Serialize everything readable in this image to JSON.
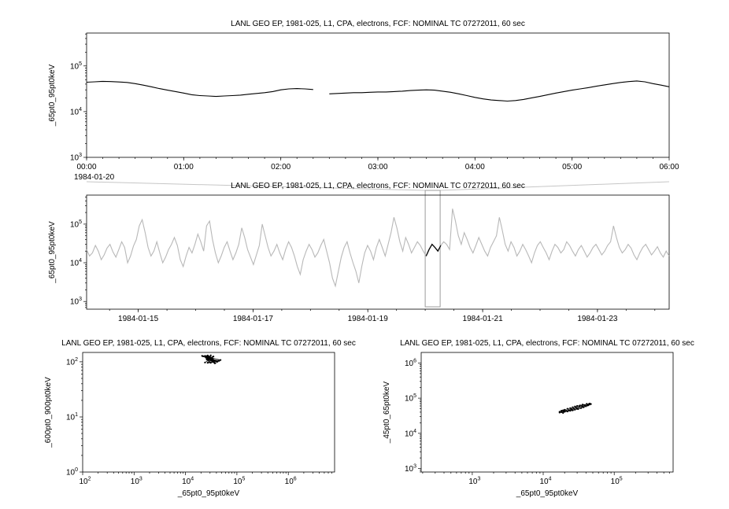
{
  "app": {
    "background": "#ffffff",
    "text_color": "#000000",
    "context_line_color": "#b8b8b8",
    "selection_box_color": "#9b9b9b"
  },
  "chart_data": [
    {
      "id": "top",
      "type": "line",
      "title": "LANL GEO EP, 1981-025, L1, CPA, electrons, FCF: NOMINAL TC 07272011, 60 sec",
      "ylabel": "_65pt0_95pt0keV",
      "xscale": "linear",
      "xlim": [
        0,
        6
      ],
      "x_minor_step": 0.16667,
      "x_tick_pos": [
        0,
        1,
        2,
        3,
        4,
        5,
        6
      ],
      "x_tick_labels": [
        "00:00",
        "01:00",
        "02:00",
        "03:00",
        "04:00",
        "05:00",
        "06:00"
      ],
      "x_context_label": "1984-01-20",
      "ylog_lim": [
        3,
        5.72
      ],
      "y_tick_exp": [
        3,
        4,
        5
      ],
      "line_color": "#000000",
      "x_start": 0,
      "x_step": 0.08333,
      "y": [
        44000,
        45000,
        46000,
        45500,
        44500,
        43500,
        41000,
        38000,
        35000,
        32000,
        29500,
        27500,
        25500,
        23500,
        22500,
        22000,
        21500,
        22000,
        22500,
        23000,
        24000,
        25000,
        26000,
        27500,
        30000,
        31500,
        32000,
        31500,
        30500,
        null,
        24500,
        25000,
        25500,
        26000,
        26000,
        26500,
        27000,
        27000,
        27500,
        28000,
        29000,
        29500,
        30000,
        29500,
        28000,
        26500,
        24500,
        22500,
        20500,
        19000,
        18000,
        17500,
        17000,
        17500,
        18500,
        20000,
        21500,
        23500,
        25500,
        27500,
        29500,
        31500,
        33500,
        36000,
        38500,
        41000,
        43500,
        45500,
        47000,
        45000,
        41000,
        38000,
        35000
      ]
    },
    {
      "id": "context",
      "type": "line",
      "title": "LANL GEO EP, 1981-025, L1, CPA, electrons, FCF: NOMINAL TC 07272011, 60 sec",
      "ylabel": "_65pt0_95pt0keV",
      "xscale": "linear",
      "xlim": [
        14.1,
        24.25
      ],
      "x_minor_step": 0.5,
      "x_tick_pos": [
        15,
        17,
        19,
        21,
        23
      ],
      "x_tick_labels": [
        "1984-01-15",
        "1984-01-17",
        "1984-01-19",
        "1984-01-21",
        "1984-01-23"
      ],
      "ylog_lim": [
        2.8,
        5.75
      ],
      "y_tick_exp": [
        3,
        4,
        5
      ],
      "line_color": "#b8b8b8",
      "highlight_color": "#000000",
      "selection": {
        "x0": 20.0,
        "x1": 20.26
      },
      "x_start": 14.1,
      "x_step": 0.051,
      "y": [
        22000,
        15000,
        18000,
        28000,
        20000,
        12000,
        16000,
        24000,
        30000,
        19000,
        14000,
        22000,
        35000,
        25000,
        10000,
        15000,
        27000,
        40000,
        90000,
        130000,
        60000,
        25000,
        15000,
        20000,
        35000,
        18000,
        10000,
        14000,
        22000,
        30000,
        45000,
        28000,
        12000,
        8000,
        15000,
        25000,
        18000,
        30000,
        55000,
        35000,
        20000,
        90000,
        120000,
        40000,
        18000,
        10000,
        15000,
        25000,
        35000,
        20000,
        12000,
        18000,
        30000,
        80000,
        45000,
        22000,
        14000,
        9000,
        16000,
        28000,
        100000,
        50000,
        25000,
        15000,
        20000,
        30000,
        18000,
        12000,
        22000,
        35000,
        25000,
        15000,
        8000,
        5000,
        12000,
        20000,
        30000,
        22000,
        14000,
        18000,
        28000,
        40000,
        20000,
        10000,
        4000,
        2500,
        6000,
        14000,
        25000,
        35000,
        18000,
        10000,
        6000,
        3000,
        8000,
        18000,
        28000,
        20000,
        12000,
        25000,
        40000,
        25000,
        15000,
        30000,
        60000,
        150000,
        80000,
        35000,
        20000,
        45000,
        30000,
        18000,
        25000,
        35000,
        28000,
        20000,
        15000,
        22000,
        30000,
        25000,
        20000,
        28000,
        35000,
        30000,
        22000,
        250000,
        120000,
        50000,
        30000,
        60000,
        40000,
        25000,
        18000,
        28000,
        45000,
        30000,
        20000,
        15000,
        25000,
        35000,
        50000,
        150000,
        70000,
        30000,
        20000,
        35000,
        25000,
        15000,
        20000,
        30000,
        22000,
        15000,
        10000,
        18000,
        28000,
        35000,
        25000,
        18000,
        12000,
        20000,
        30000,
        25000,
        18000,
        22000,
        35000,
        28000,
        20000,
        15000,
        22000,
        28000,
        20000,
        14000,
        18000,
        25000,
        30000,
        22000,
        16000,
        20000,
        28000,
        35000,
        90000,
        45000,
        25000,
        18000,
        22000,
        30000,
        24000,
        16000,
        12000,
        18000,
        25000,
        30000,
        22000,
        16000,
        20000,
        26000,
        18000,
        14000,
        20000,
        15000
      ]
    },
    {
      "id": "corr1",
      "type": "scatter",
      "connect": true,
      "title": "LANL GEO EP, 1981-025, L1, CPA, electrons, FCF: NOMINAL TC 07272011, 60 sec",
      "ylabel": "_600pt0_900pt0keV",
      "xlabel": "_65pt0_95pt0keV",
      "xscale": "log",
      "xlog_lim": [
        2,
        6.9
      ],
      "x_tick_exp": [
        2,
        3,
        4,
        5,
        6
      ],
      "ylog_lim": [
        0,
        2.17
      ],
      "y_tick_exp": [
        0,
        1,
        2
      ],
      "points_x": [
        28000,
        30000,
        32000,
        25000,
        35000,
        27000,
        31000,
        29000,
        33000,
        26000,
        36000,
        24000,
        38000,
        30000,
        28000,
        41000,
        22000,
        34000,
        29000,
        31000,
        27000,
        45000,
        25000,
        33000,
        30000,
        28000,
        36000,
        32000,
        26000,
        39000,
        29000,
        31000,
        24000,
        35000,
        28000,
        30000,
        42000,
        27000,
        33000,
        29000,
        37000,
        25000,
        31000,
        28000,
        34000,
        30000,
        26000,
        32000,
        48000,
        29000,
        21000,
        35000,
        31000,
        27000,
        33000
      ],
      "points_y": [
        112,
        118,
        108,
        125,
        102,
        130,
        115,
        98,
        121,
        110,
        105,
        128,
        95,
        117,
        122,
        100,
        126,
        109,
        114,
        131,
        96,
        104,
        119,
        111,
        124,
        107,
        99,
        116,
        127,
        103,
        120,
        113,
        97,
        125,
        108,
        118,
        101,
        129,
        106,
        115,
        94,
        122,
        110,
        126,
        99,
        117,
        112,
        104,
        108,
        121,
        128,
        102,
        96,
        119,
        114
      ]
    },
    {
      "id": "corr2",
      "type": "scatter",
      "connect": true,
      "title": "LANL GEO EP, 1981-025, L1, CPA, electrons, FCF: NOMINAL TC 07272011, 60 sec",
      "ylabel": "_45pt0_65pt0keV",
      "xlabel": "_65pt0_95pt0keV",
      "xscale": "log",
      "xlog_lim": [
        2.28,
        5.83
      ],
      "x_tick_exp": [
        3,
        4,
        5
      ],
      "ylog_lim": [
        2.9,
        6.3
      ],
      "y_tick_exp": [
        3,
        4,
        5,
        6
      ],
      "points_x": [
        47000,
        45000,
        44000,
        41000,
        38000,
        36000,
        33000,
        30000,
        28000,
        26000,
        24000,
        22000,
        20000,
        19000,
        18000,
        17000,
        17000,
        18000,
        19000,
        20000,
        22000,
        24000,
        26000,
        28000,
        31000,
        34000,
        37000,
        40000,
        43000,
        45000,
        46000,
        44000,
        42000,
        39000,
        35000,
        32000,
        29000,
        27000,
        25000,
        23000,
        21000,
        19000,
        18000,
        20000,
        25000,
        30000,
        36000,
        42000
      ],
      "points_y": [
        68000,
        70000,
        66000,
        69000,
        64000,
        66000,
        62000,
        60000,
        58000,
        55000,
        52000,
        50000,
        47000,
        45000,
        43000,
        41000,
        39000,
        40000,
        38000,
        41000,
        42000,
        44000,
        45000,
        47000,
        49000,
        52000,
        55000,
        59000,
        63000,
        66000,
        69000,
        68000,
        65000,
        62000,
        60000,
        57000,
        54000,
        51000,
        49000,
        46000,
        44000,
        42000,
        44000,
        43000,
        47000,
        51000,
        57000,
        62000
      ]
    }
  ]
}
